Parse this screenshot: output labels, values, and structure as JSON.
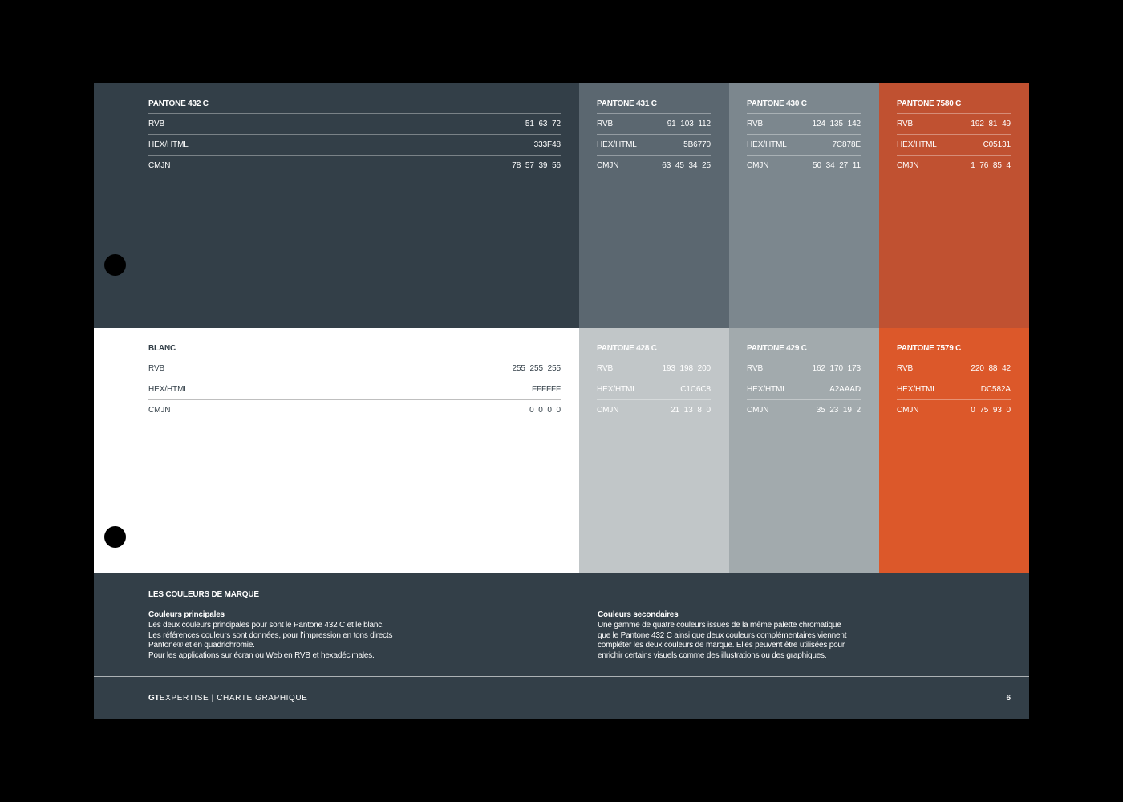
{
  "swatches": [
    {
      "name": "PANTONE 432 C",
      "rvb": "51 63 72",
      "hex": "333F48",
      "cmjn": "78 57 39 56",
      "bg": "#333f48",
      "fg": "#ffffff"
    },
    {
      "name": "PANTONE 431 C",
      "rvb": "91 103 112",
      "hex": "5B6770",
      "cmjn": "63 45 34 25",
      "bg": "#5b6770",
      "fg": "#ffffff"
    },
    {
      "name": "PANTONE 430 C",
      "rvb": "124 135 142",
      "hex": "7C878E",
      "cmjn": "50 34 27 11",
      "bg": "#7c878e",
      "fg": "#ffffff"
    },
    {
      "name": "PANTONE 7580 C",
      "rvb": "192 81 49",
      "hex": "C05131",
      "cmjn": "1 76 85 4",
      "bg": "#c05131",
      "fg": "#ffffff"
    },
    {
      "name": "BLANC",
      "rvb": "255 255 255",
      "hex": "FFFFFF",
      "cmjn": "0 0 0 0",
      "bg": "#ffffff",
      "fg": "#333f48"
    },
    {
      "name": "PANTONE 428 C",
      "rvb": "193 198 200",
      "hex": "C1C6C8",
      "cmjn": "21 13 8 0",
      "bg": "#c1c6c8",
      "fg": "#ffffff"
    },
    {
      "name": "PANTONE 429 C",
      "rvb": "162 170 173",
      "hex": "A2AAAD",
      "cmjn": "35 23 19 2",
      "bg": "#a2aaad",
      "fg": "#ffffff"
    },
    {
      "name": "PANTONE 7579 C",
      "rvb": "220 88 42",
      "hex": "DC582A",
      "cmjn": "0 75 93 0",
      "bg": "#dc582a",
      "fg": "#ffffff"
    }
  ],
  "labels": {
    "rvb": "RVB",
    "hex": "HEX/HTML",
    "cmjn": "CMJN"
  },
  "footer": {
    "heading": "LES COULEURS DE MARQUE",
    "primary_title": "Couleurs principales",
    "primary_text": "Les deux couleurs principales pour sont le Pantone 432 C et le blanc.\nLes références couleurs sont données, pour l’impression en tons directs\nPantone® et en quadrichromie.\nPour les applications sur écran ou Web en RVB et hexadécimales.",
    "secondary_title": "Couleurs secondaires",
    "secondary_text": "Une gamme de quatre couleurs issues de la même palette chromatique\nque le Pantone 432 C ainsi que deux couleurs complémentaires viennent\ncompléter les deux couleurs de marque. Elles peuvent être utilisées pour\nenrichir certains visuels comme des illustrations ou des graphiques.",
    "brand_bold": "GT",
    "brand_rest": "EXPERTISE | CHARTE GRAPHIQUE",
    "page_number": "6"
  }
}
